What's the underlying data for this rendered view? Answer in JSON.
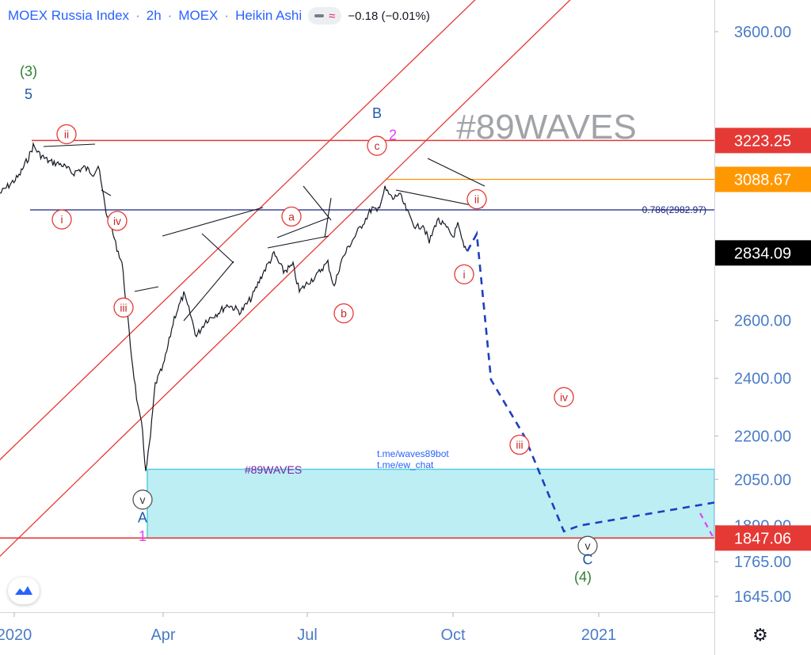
{
  "header": {
    "symbol": "MOEX Russia Index",
    "interval": "2h",
    "exchange": "MOEX",
    "chart_style": "Heikin Ashi",
    "change": "−0.18 (−0.01%)"
  },
  "watermark": "#89WAVES",
  "zone": {
    "watermark": "#89WAVES",
    "link1": "t.me/waves89bot",
    "link2": "t.me/ew_chat"
  },
  "fib_label": "0.786(2982.97)",
  "price_badges": {
    "upper_red": "3223.25",
    "orange": "3088.67",
    "last": "2834.09",
    "lower_red": "1847.06"
  },
  "colors": {
    "red": "#e53935",
    "orange": "#ff9800",
    "navy": "#1a237e",
    "blue_projection": "#1e3fbf",
    "zone_fill": "#b2ebf2",
    "zone_border": "#4dd0e1",
    "axis_text": "#4a7cc7",
    "wave_green": "#2e7d32",
    "wave_blue": "#1e5aa8",
    "wave_magenta": "#e040fb"
  },
  "chart_data": {
    "type": "line",
    "title": "MOEX Russia Index · 2h · MOEX · Heikin Ashi",
    "xlabel": "",
    "ylabel": "",
    "x_ticks": [
      "2020",
      "Apr",
      "Jul",
      "Oct",
      "2021"
    ],
    "y_ticks": [
      3600,
      3223.25,
      3088.67,
      2834.09,
      2600,
      2400,
      2200,
      2050,
      1890,
      1847.06,
      1765,
      1645
    ],
    "y_tick_labels": [
      "3600.00",
      "3223.25",
      "3088.67",
      "2834.09",
      "2600.00",
      "2400.00",
      "2200.00",
      "2050.00",
      "1890.00",
      "1847.06",
      "1765.00",
      "1645.00"
    ],
    "ylim": [
      1600,
      3760
    ],
    "xlim": [
      "2019-12-20",
      "2021-03-15"
    ],
    "grid": false,
    "legend": "none",
    "series": [
      {
        "values": [
          [
            "2019-12-20",
            3040
          ],
          [
            "2020-01-01",
            3100
          ],
          [
            "2020-01-07",
            3165
          ],
          [
            "2020-01-10",
            3205
          ],
          [
            "2020-01-14",
            3175
          ],
          [
            "2020-01-20",
            3150
          ],
          [
            "2020-01-28",
            3140
          ],
          [
            "2020-02-04",
            3110
          ],
          [
            "2020-02-11",
            3130
          ],
          [
            "2020-02-17",
            3110
          ],
          [
            "2020-02-20",
            3135
          ],
          [
            "2020-02-25",
            2975
          ],
          [
            "2020-02-28",
            2930
          ],
          [
            "2020-03-02",
            2865
          ],
          [
            "2020-03-06",
            2800
          ],
          [
            "2020-03-09",
            2640
          ],
          [
            "2020-03-12",
            2480
          ],
          [
            "2020-03-16",
            2300
          ],
          [
            "2020-03-19",
            2220
          ],
          [
            "2020-03-21",
            2070
          ],
          [
            "2020-03-24",
            2200
          ],
          [
            "2020-03-27",
            2380
          ],
          [
            "2020-04-01",
            2440
          ],
          [
            "2020-04-04",
            2510
          ],
          [
            "2020-04-08",
            2610
          ],
          [
            "2020-04-14",
            2690
          ],
          [
            "2020-04-18",
            2625
          ],
          [
            "2020-04-22",
            2545
          ],
          [
            "2020-04-28",
            2600
          ],
          [
            "2020-05-05",
            2625
          ],
          [
            "2020-05-12",
            2655
          ],
          [
            "2020-05-20",
            2630
          ],
          [
            "2020-05-27",
            2680
          ],
          [
            "2020-06-03",
            2765
          ],
          [
            "2020-06-10",
            2830
          ],
          [
            "2020-06-16",
            2770
          ],
          [
            "2020-06-22",
            2790
          ],
          [
            "2020-06-26",
            2700
          ],
          [
            "2020-07-02",
            2735
          ],
          [
            "2020-07-07",
            2755
          ],
          [
            "2020-07-10",
            2780
          ],
          [
            "2020-07-14",
            2800
          ],
          [
            "2020-07-18",
            2715
          ],
          [
            "2020-07-22",
            2800
          ],
          [
            "2020-07-27",
            2855
          ],
          [
            "2020-08-01",
            2900
          ],
          [
            "2020-08-06",
            2945
          ],
          [
            "2020-08-11",
            2990
          ],
          [
            "2020-08-14",
            2975
          ],
          [
            "2020-08-19",
            3055
          ],
          [
            "2020-08-24",
            3020
          ],
          [
            "2020-08-28",
            3040
          ],
          [
            "2020-09-03",
            2965
          ],
          [
            "2020-09-08",
            2920
          ],
          [
            "2020-09-12",
            2935
          ],
          [
            "2020-09-16",
            2870
          ],
          [
            "2020-09-21",
            2950
          ],
          [
            "2020-09-26",
            2925
          ],
          [
            "2020-10-01",
            2890
          ],
          [
            "2020-10-04",
            2930
          ],
          [
            "2020-10-08",
            2850
          ],
          [
            "2020-10-10",
            2840
          ]
        ]
      },
      {
        "values": [
          [
            "2020-10-10",
            2840
          ],
          [
            "2020-10-16",
            2900
          ],
          [
            "2020-10-25",
            2395
          ],
          [
            "2020-11-15",
            2200
          ],
          [
            "2020-12-10",
            1870
          ],
          [
            "2020-12-20",
            1890
          ],
          [
            "2021-03-15",
            1970
          ]
        ]
      }
    ],
    "annotations": [
      {
        "text": "(3)",
        "x": "2020-01-07",
        "y": 3460
      },
      {
        "text": "5",
        "x": "2020-01-07",
        "y": 3380
      },
      {
        "text": "ii",
        "x": "2020-01-31",
        "y": 3245
      },
      {
        "text": "i",
        "x": "2020-01-28",
        "y": 2950
      },
      {
        "text": "iv",
        "x": "2020-03-03",
        "y": 2945
      },
      {
        "text": "iii",
        "x": "2020-03-07",
        "y": 2645
      },
      {
        "text": "a",
        "x": "2020-06-21",
        "y": 2960
      },
      {
        "text": "b",
        "x": "2020-07-24",
        "y": 2625
      },
      {
        "text": "B",
        "x": "2020-08-14",
        "y": 3315
      },
      {
        "text": "c",
        "x": "2020-08-14",
        "y": 3205
      },
      {
        "text": "2",
        "x": "2020-08-24",
        "y": 3240
      },
      {
        "text": "ii",
        "x": "2020-10-16",
        "y": 3020
      },
      {
        "text": "i",
        "x": "2020-10-08",
        "y": 2760
      },
      {
        "text": "iv",
        "x": "2020-12-10",
        "y": 2335
      },
      {
        "text": "iii",
        "x": "2020-11-12",
        "y": 2170
      },
      {
        "text": "v",
        "x": "2020-03-19",
        "y": 1980
      },
      {
        "text": "A",
        "x": "2020-03-19",
        "y": 1915
      },
      {
        "text": "1",
        "x": "2020-03-19",
        "y": 1850
      },
      {
        "text": "v",
        "x": "2020-12-25",
        "y": 1820
      },
      {
        "text": "C",
        "x": "2020-12-25",
        "y": 1770
      },
      {
        "text": "(4)",
        "x": "2020-12-22",
        "y": 1710
      }
    ],
    "levels": [
      {
        "y": 3223.25,
        "label": "3223.25",
        "color": "red"
      },
      {
        "y": 3088.67,
        "label": "3088.67",
        "color": "orange"
      },
      {
        "y": 2982.97,
        "label": "0.786(2982.97)",
        "color": "navy"
      },
      {
        "y": 1847.06,
        "label": "1847.06",
        "color": "red"
      }
    ],
    "zone": {
      "x_from": "2020-03-22",
      "x_to": "2021-03-15",
      "y_from": 1847.06,
      "y_to": 2085
    }
  }
}
